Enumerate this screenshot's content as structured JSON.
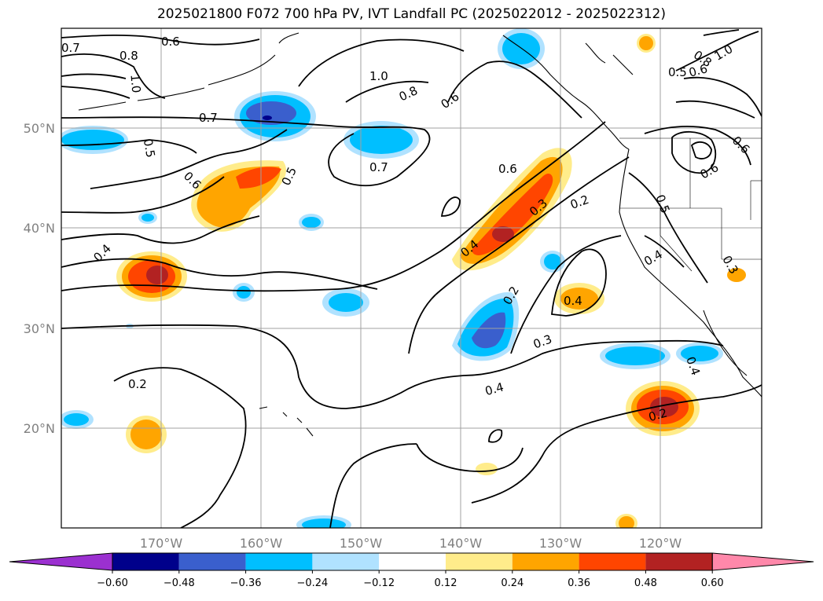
{
  "title": "2025021800 F072 700 hPa PV, IVT Landfall PC (2025022012 - 2025022312)",
  "lon_ticks": [
    "170°W",
    "160°W",
    "150°W",
    "140°W",
    "130°W",
    "120°W"
  ],
  "lat_ticks": [
    "50°N",
    "40°N",
    "30°N",
    "20°N"
  ],
  "contour_labels": [
    "0.7",
    "0.6",
    "0.8",
    "1.0",
    "0.7",
    "0.5",
    "0.6",
    "0.5",
    "0.4",
    "0.2",
    "1.0",
    "0.8",
    "0.6",
    "0.7",
    "0.6",
    "0.3",
    "0.2",
    "0.4",
    "0.2",
    "0.3",
    "0.4",
    "0.4",
    "0.2",
    "0.6",
    "1.0",
    "0.8",
    "0.6",
    "0.5",
    "0.6",
    "0.5",
    "0.4",
    "0.3",
    "0.4"
  ],
  "colorbar": {
    "ticks": [
      "−0.60",
      "−0.48",
      "−0.36",
      "−0.24",
      "−0.12",
      "0.12",
      "0.24",
      "0.36",
      "0.48",
      "0.60"
    ],
    "colors": [
      "#9b30d0",
      "#00008b",
      "#3a5fcd",
      "#00bfff",
      "#b0e2ff",
      "#ffffff",
      "#ffec8b",
      "#ffa500",
      "#ff4500",
      "#b22222",
      "#ff88aa"
    ]
  },
  "chart_data": {
    "type": "heatmap",
    "variable_contours": "700 hPa PV",
    "variable_shading": "IVT Landfall PC",
    "lon_range": [
      -180,
      -110
    ],
    "lat_range": [
      10,
      60
    ],
    "shading_levels": [
      -0.6,
      -0.48,
      -0.36,
      -0.24,
      -0.12,
      0.12,
      0.24,
      0.36,
      0.48,
      0.6
    ]
  }
}
